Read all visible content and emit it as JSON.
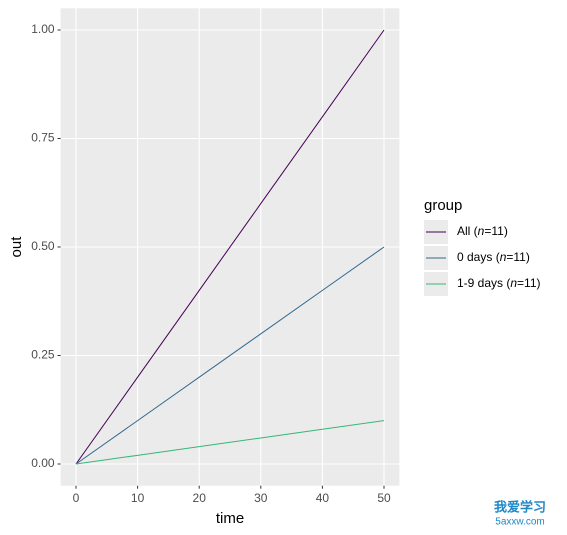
{
  "chart_data": {
    "type": "line",
    "x_label": "time",
    "y_label": "out",
    "x": [
      0,
      10,
      20,
      30,
      40,
      50
    ],
    "series": [
      {
        "name": "All (n=11)",
        "color": "#440154",
        "values": [
          0,
          0.2,
          0.4,
          0.6,
          0.8,
          1.0
        ]
      },
      {
        "name": "0 days (n=11)",
        "color": "#31688e",
        "values": [
          0,
          0.1,
          0.2,
          0.3,
          0.4,
          0.5
        ]
      },
      {
        "name": "1-9 days (n=11)",
        "color": "#35b779",
        "values": [
          0,
          0.02,
          0.04,
          0.06,
          0.08,
          0.1
        ]
      }
    ],
    "legend_title": "group",
    "legend_position": "right",
    "xlim": [
      -2.5,
      52.5
    ],
    "xticks": [
      0,
      10,
      20,
      30,
      40,
      50
    ],
    "ylim": [
      -0.05,
      1.05
    ],
    "yticks": [
      {
        "value": 0,
        "label": "0.00"
      },
      {
        "value": 0.25,
        "label": "0.25"
      },
      {
        "value": 0.5,
        "label": "0.50"
      },
      {
        "value": 0.75,
        "label": "0.75"
      },
      {
        "value": 1,
        "label": "1.00"
      }
    ],
    "grid": true
  },
  "watermark": {
    "text": "我爱学习",
    "url": "5axxw.com"
  }
}
